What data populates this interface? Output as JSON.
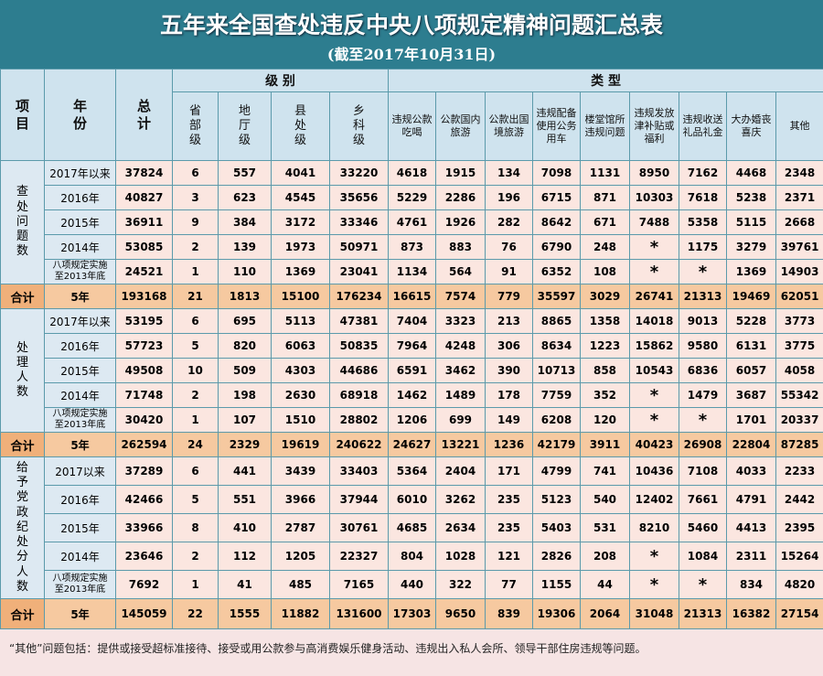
{
  "header": {
    "title": "五年来全国查处违反中央八项规定精神问题汇总表",
    "subtitle": "(截至2017年10月31日)"
  },
  "table": {
    "item": "项目",
    "year": "年份",
    "total": "总计",
    "level_group": "级 别",
    "type_group": "类 型",
    "columns": [
      "省部级",
      "地厅级",
      "县处级",
      "乡科级",
      "违规公款吃喝",
      "公款国内旅游",
      "公款出国境旅游",
      "违规配备使用公务用车",
      "楼堂馆所违规问题",
      "违规发放津补贴或福利",
      "违规收送礼品礼金",
      "大办婚丧喜庆",
      "其他"
    ],
    "sections": [
      {
        "label": "查处问题数",
        "rows": [
          [
            "2017年以来",
            37824,
            6,
            557,
            4041,
            33220,
            4618,
            1915,
            134,
            7098,
            1131,
            8950,
            7162,
            4468,
            2348
          ],
          [
            "2016年",
            40827,
            3,
            623,
            4545,
            35656,
            5229,
            2286,
            196,
            6715,
            871,
            10303,
            7618,
            5238,
            2371
          ],
          [
            "2015年",
            36911,
            9,
            384,
            3172,
            33346,
            4761,
            1926,
            282,
            8642,
            671,
            7488,
            5358,
            5115,
            2668
          ],
          [
            "2014年",
            53085,
            2,
            139,
            1973,
            50971,
            873,
            883,
            76,
            6790,
            248,
            "*",
            1175,
            3279,
            39761
          ],
          [
            "八项规定实施至2013年底",
            24521,
            1,
            110,
            1369,
            23041,
            1134,
            564,
            91,
            6352,
            108,
            "*",
            "*",
            1369,
            14903
          ]
        ],
        "total_label": "合计",
        "total": [
          "5年",
          193168,
          21,
          1813,
          15100,
          176234,
          16615,
          7574,
          779,
          35597,
          3029,
          26741,
          21313,
          19469,
          62051
        ]
      },
      {
        "label": "处理人数",
        "rows": [
          [
            "2017年以来",
            53195,
            6,
            695,
            5113,
            47381,
            7404,
            3323,
            213,
            8865,
            1358,
            14018,
            9013,
            5228,
            3773
          ],
          [
            "2016年",
            57723,
            5,
            820,
            6063,
            50835,
            7964,
            4248,
            306,
            8634,
            1223,
            15862,
            9580,
            6131,
            3775
          ],
          [
            "2015年",
            49508,
            10,
            509,
            4303,
            44686,
            6591,
            3462,
            390,
            10713,
            858,
            10543,
            6836,
            6057,
            4058
          ],
          [
            "2014年",
            71748,
            2,
            198,
            2630,
            68918,
            1462,
            1489,
            178,
            7759,
            352,
            "*",
            1479,
            3687,
            55342
          ],
          [
            "八项规定实施至2013年底",
            30420,
            1,
            107,
            1510,
            28802,
            1206,
            699,
            149,
            6208,
            120,
            "*",
            "*",
            1701,
            20337
          ]
        ],
        "total_label": "合计",
        "total": [
          "5年",
          262594,
          24,
          2329,
          19619,
          240622,
          24627,
          13221,
          1236,
          42179,
          3911,
          40423,
          26908,
          22804,
          87285
        ]
      },
      {
        "label": "给予党政纪处分人数",
        "rows": [
          [
            "2017以来",
            37289,
            6,
            441,
            3439,
            33403,
            5364,
            2404,
            171,
            4799,
            741,
            10436,
            7108,
            4033,
            2233
          ],
          [
            "2016年",
            42466,
            5,
            551,
            3966,
            37944,
            6010,
            3262,
            235,
            5123,
            540,
            12402,
            7661,
            4791,
            2442
          ],
          [
            "2015年",
            33966,
            8,
            410,
            2787,
            30761,
            4685,
            2634,
            235,
            5403,
            531,
            8210,
            5460,
            4413,
            2395
          ],
          [
            "2014年",
            23646,
            2,
            112,
            1205,
            22327,
            804,
            1028,
            121,
            2826,
            208,
            "*",
            1084,
            2311,
            15264
          ],
          [
            "八项规定实施至2013年底",
            7692,
            1,
            41,
            485,
            7165,
            440,
            322,
            77,
            1155,
            44,
            "*",
            "*",
            834,
            4820
          ]
        ],
        "total_label": "合计",
        "total": [
          "5年",
          145059,
          22,
          1555,
          11882,
          131600,
          17303,
          9650,
          839,
          19306,
          2064,
          31048,
          21313,
          16382,
          27154
        ]
      }
    ]
  },
  "note": "“其他”问题包括：提供或接受超标准接待、接受或用公款参与高消费娱乐健身活动、违规出入私人会所、领导干部住房违规等问题。"
}
